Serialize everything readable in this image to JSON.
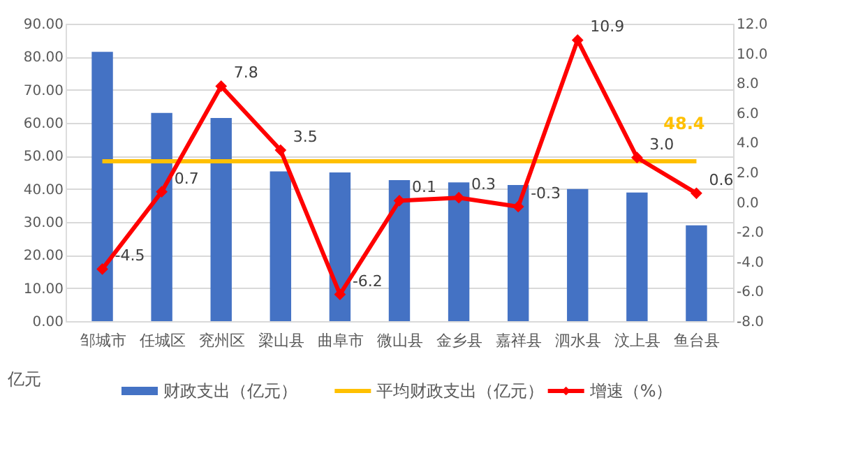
{
  "chart_data": {
    "type": "bar",
    "categories": [
      "邹城市",
      "任城区",
      "兖州区",
      "梁山县",
      "曲阜市",
      "微山县",
      "金乡县",
      "嘉祥县",
      "泗水县",
      "汶上县",
      "鱼台县"
    ],
    "ylabel": "亿元",
    "ylim": [
      0,
      90
    ],
    "yticks": [
      {
        "value": 0,
        "label": "0.00"
      },
      {
        "value": 10,
        "label": "10.00"
      },
      {
        "value": 20,
        "label": "20.00"
      },
      {
        "value": 30,
        "label": "30.00"
      },
      {
        "value": 40,
        "label": "40.00"
      },
      {
        "value": 50,
        "label": "50.00"
      },
      {
        "value": 60,
        "label": "60.00"
      },
      {
        "value": 70,
        "label": "70.00"
      },
      {
        "value": 80,
        "label": "80.00"
      },
      {
        "value": 90,
        "label": "90.00"
      }
    ],
    "y2lim": [
      -8,
      12
    ],
    "y2ticks": [
      {
        "value": -8,
        "label": "-8.0"
      },
      {
        "value": -6,
        "label": "-6.0"
      },
      {
        "value": -4,
        "label": "-4.0"
      },
      {
        "value": -2,
        "label": "-2.0"
      },
      {
        "value": 0,
        "label": "0.0"
      },
      {
        "value": 2,
        "label": "2.0"
      },
      {
        "value": 4,
        "label": "4.0"
      },
      {
        "value": 6,
        "label": "6.0"
      },
      {
        "value": 8,
        "label": "8.0"
      },
      {
        "value": 10,
        "label": "10.0"
      },
      {
        "value": 12,
        "label": "12.0"
      }
    ],
    "grid": "y",
    "legend": "bottom",
    "series": [
      {
        "name": "财政支出（亿元）",
        "type": "bar",
        "color": "#4472c4",
        "values": [
          81.5,
          63.0,
          61.5,
          45.3,
          45.0,
          42.7,
          42.0,
          41.2,
          40.0,
          38.9,
          29.0
        ]
      },
      {
        "name": "平均财政支出（亿元）",
        "type": "line",
        "color": "#ffc000",
        "marker": "none",
        "values": [
          48.4,
          48.4,
          48.4,
          48.4,
          48.4,
          48.4,
          48.4,
          48.4,
          48.4,
          48.4,
          48.4
        ],
        "value_labels": [
          null,
          null,
          null,
          null,
          null,
          null,
          null,
          null,
          null,
          null,
          "48.4"
        ]
      },
      {
        "name": "增速（%）",
        "type": "line",
        "axis": "y2",
        "color": "#ff0000",
        "marker": "diamond",
        "values": [
          -4.5,
          0.7,
          7.8,
          3.5,
          -6.2,
          0.1,
          0.3,
          -0.3,
          10.9,
          3.0,
          0.6
        ],
        "value_labels": [
          "-4.5",
          "0.7",
          "7.8",
          "3.5",
          "-6.2",
          "0.1",
          "0.3",
          "-0.3",
          "10.9",
          "3.0",
          "0.6"
        ]
      }
    ]
  }
}
